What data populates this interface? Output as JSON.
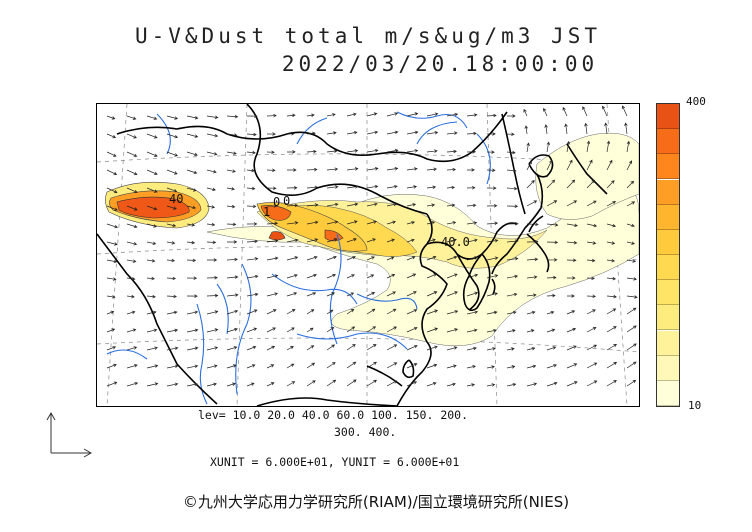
{
  "title": {
    "line1": "U-V&Dust total m/s&ug/m3 JST",
    "line2": "2022/03/20.18:00:00"
  },
  "colorbar": {
    "max_label": "400",
    "min_label": "10",
    "colors": [
      "#ffffd9",
      "#fff8b8",
      "#fff29a",
      "#ffec7f",
      "#ffe466",
      "#ffd94f",
      "#ffca3c",
      "#ffb62e",
      "#ff9e24",
      "#ff861d",
      "#f66c18",
      "#e85214"
    ]
  },
  "contour_labels": [
    "40",
    "1",
    "0",
    "0",
    "40.0"
  ],
  "levels": {
    "line1": "lev= 10.0 20.0 40.0 60.0 100. 150. 200.",
    "line2": "300. 400."
  },
  "units": {
    "line": "XUNIT = 6.000E+01, YUNIT = 6.000E+01"
  },
  "credit": "©九州大学応用力学研究所(RIAM)/国立環境研究所(NIES)"
}
